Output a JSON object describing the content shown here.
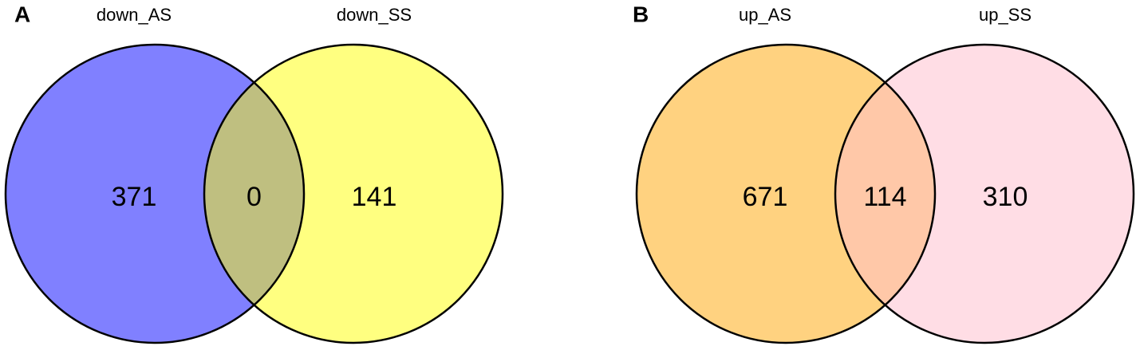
{
  "chart_data": [
    {
      "type": "venn",
      "panel_label": "A",
      "sets": [
        {
          "name": "down_AS",
          "color": "#8080ff"
        },
        {
          "name": "down_SS",
          "color": "#ffff80"
        }
      ],
      "overlap_color": "#bfbf80",
      "values": [
        371,
        0,
        141
      ]
    },
    {
      "type": "venn",
      "panel_label": "B",
      "sets": [
        {
          "name": "up_AS",
          "color": "#ffd280"
        },
        {
          "name": "up_SS",
          "color": "#ffdde5"
        }
      ],
      "overlap_color": "#ffc8a8",
      "values": [
        671,
        114,
        310
      ]
    }
  ]
}
